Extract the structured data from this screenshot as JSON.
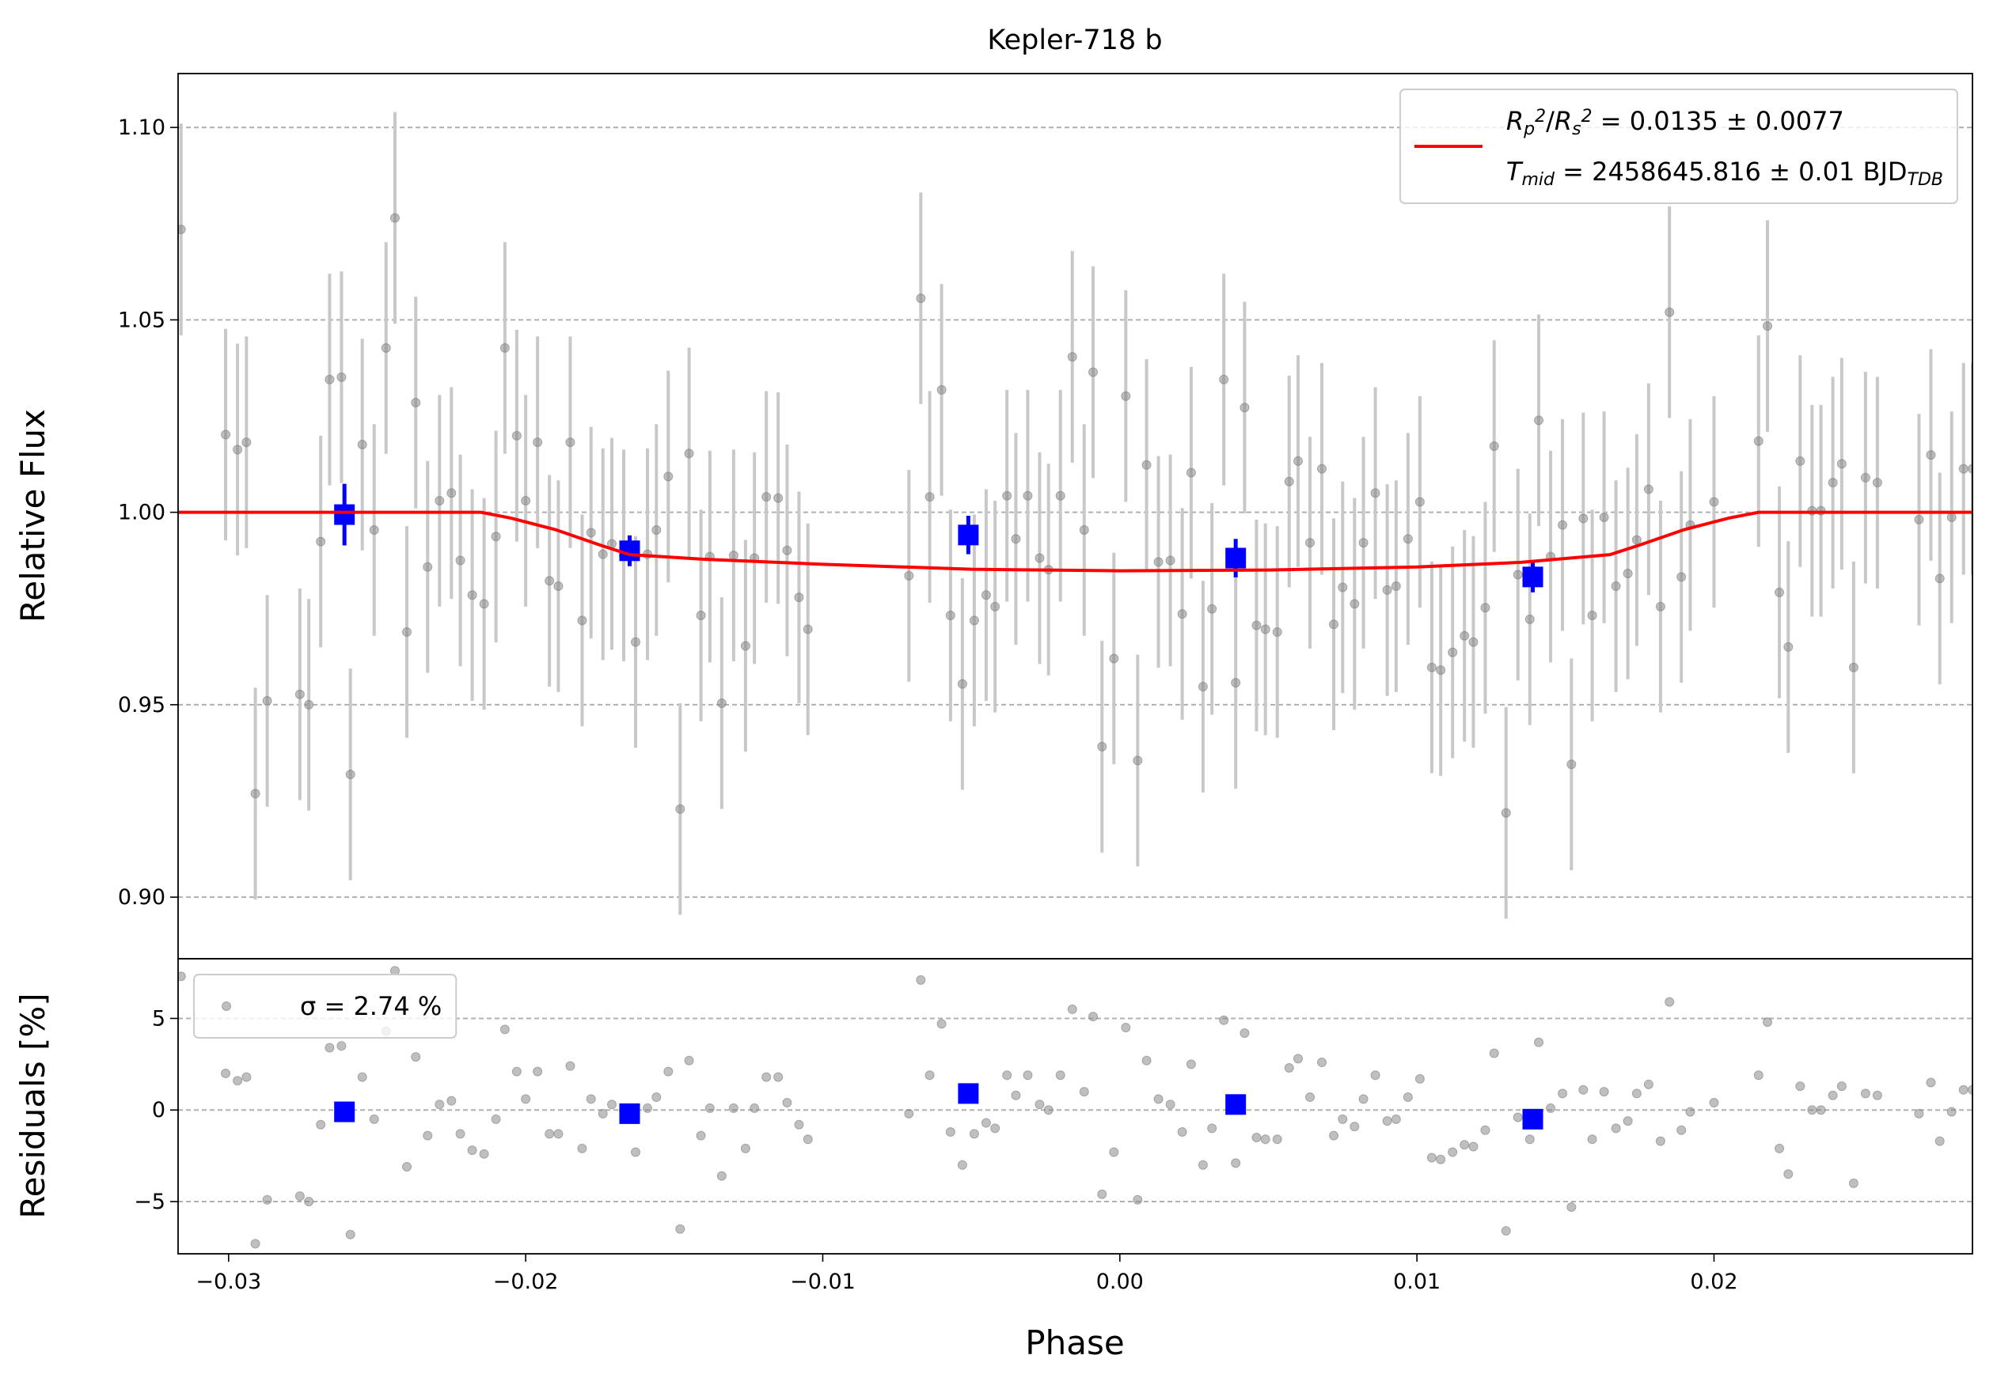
{
  "chart_data": [
    {
      "type": "errorbar",
      "title": "Kepler-718 b",
      "ylabel": "Relative Flux",
      "xlim": [
        -0.0317,
        0.0287
      ],
      "ylim": [
        0.884,
        1.114
      ],
      "yticks": [
        {
          "value": 0.9,
          "label": "0.90"
        },
        {
          "value": 0.95,
          "label": "0.95"
        },
        {
          "value": 1.0,
          "label": "1.00"
        },
        {
          "value": 1.05,
          "label": "1.05"
        },
        {
          "value": 1.1,
          "label": "1.10"
        }
      ],
      "grid": true,
      "legend": "upper right",
      "series": [
        {
          "color": "#808080",
          "marker": "o",
          "yerr": 0.0275,
          "x": [
            -0.0316,
            -0.0301,
            -0.0297,
            -0.0294,
            -0.0291,
            -0.0287,
            -0.0276,
            -0.0273,
            -0.0269,
            -0.0266,
            -0.0262,
            -0.0259,
            -0.0255,
            -0.0251,
            -0.0247,
            -0.0244,
            -0.024,
            -0.0237,
            -0.0233,
            -0.0229,
            -0.0225,
            -0.0222,
            -0.0218,
            -0.0214,
            -0.021,
            -0.0207,
            -0.0203,
            -0.02,
            -0.0196,
            -0.0192,
            -0.0189,
            -0.0185,
            -0.0181,
            -0.0178,
            -0.0174,
            -0.0171,
            -0.0167,
            -0.0163,
            -0.0159,
            -0.0156,
            -0.0152,
            -0.0148,
            -0.0145,
            -0.0141,
            -0.0138,
            -0.0134,
            -0.013,
            -0.0126,
            -0.0123,
            -0.0119,
            -0.0115,
            -0.0112,
            -0.0108,
            -0.0105,
            -0.0071,
            -0.0067,
            -0.0064,
            -0.006,
            -0.0057,
            -0.0053,
            -0.0049,
            -0.0045,
            -0.0042,
            -0.0038,
            -0.0035,
            -0.0031,
            -0.0027,
            -0.0024,
            -0.002,
            -0.0016,
            -0.0012,
            -0.0009,
            -0.0006,
            -0.0002,
            0.0002,
            0.0006,
            0.0009,
            0.0013,
            0.0017,
            0.0021,
            0.0024,
            0.0028,
            0.0031,
            0.0035,
            0.0039,
            0.0042,
            0.0046,
            0.0049,
            0.0053,
            0.0057,
            0.006,
            0.0064,
            0.0068,
            0.0072,
            0.0075,
            0.0079,
            0.0082,
            0.0086,
            0.009,
            0.0093,
            0.0097,
            0.0101,
            0.0105,
            0.0108,
            0.0112,
            0.0116,
            0.0119,
            0.0123,
            0.0126,
            0.013,
            0.0134,
            0.0138,
            0.0141,
            0.0145,
            0.0149,
            0.0152,
            0.0156,
            0.0159,
            0.0163,
            0.0167,
            0.0171,
            0.0174,
            0.0178,
            0.0182,
            0.0185,
            0.0189,
            0.0192,
            0.02,
            0.0215,
            0.0218,
            0.0222,
            0.0225,
            0.0229,
            0.0233,
            0.0236,
            0.024,
            0.0243,
            0.0247,
            0.0251,
            0.0255,
            0.0269,
            0.0273,
            0.0276,
            0.028,
            0.0284,
            0.0287
          ],
          "values": [
            1.0735,
            1.0202,
            1.0163,
            1.0182,
            0.9269,
            0.951,
            0.9527,
            0.95,
            0.9924,
            1.0345,
            1.0351,
            0.9319,
            1.0176,
            0.9954,
            1.0427,
            1.0765,
            0.9689,
            1.0285,
            0.9858,
            1.003,
            1.005,
            0.9875,
            0.9785,
            0.9762,
            0.9937,
            1.0427,
            1.0199,
            1.003,
            1.0182,
            0.9822,
            0.9808,
            1.0182,
            0.9719,
            0.9947,
            0.9891,
            0.9918,
            0.9888,
            0.9663,
            0.9891,
            0.9954,
            1.0093,
            0.9229,
            1.0153,
            0.9732,
            0.9885,
            0.9504,
            0.9888,
            0.9653,
            0.9881,
            1.004,
            1.0037,
            0.9901,
            0.9779,
            0.9696,
            0.9835,
            1.0556,
            1.004,
            1.0318,
            0.9732,
            0.9554,
            0.9719,
            0.9785,
            0.9755,
            1.0043,
            0.9931,
            1.0043,
            0.9881,
            0.9851,
            1.0043,
            1.0404,
            0.9954,
            1.0364,
            0.9391,
            0.962,
            1.0302,
            0.9355,
            1.0123,
            0.9871,
            0.9875,
            0.9736,
            1.0103,
            0.9547,
            0.9749,
            1.0345,
            0.9557,
            1.0272,
            0.9706,
            0.9696,
            0.9689,
            1.008,
            1.0133,
            0.9921,
            1.0113,
            0.9709,
            0.9805,
            0.9762,
            0.9921,
            1.005,
            0.9798,
            0.9808,
            0.9931,
            1.0027,
            0.9597,
            0.959,
            0.9636,
            0.9679,
            0.9663,
            0.9752,
            1.0172,
            0.9219,
            0.9838,
            0.9722,
            1.0239,
            0.9885,
            0.9967,
            0.9345,
            0.9984,
            0.9732,
            0.9987,
            0.9808,
            0.9841,
            0.9928,
            1.006,
            0.9755,
            1.052,
            0.9832,
            0.9967,
            1.0027,
            1.0185,
            1.0484,
            0.9792,
            0.965,
            1.0133,
            1.0004,
            1.0004,
            1.0077,
            1.0126,
            0.9597,
            1.009,
            1.0077,
            0.9981,
            1.0149,
            0.9828,
            0.9987,
            1.0113,
            1.0113
          ]
        },
        {
          "color": "#0000ff",
          "marker": "s",
          "x": [
            -0.0261,
            -0.0165,
            -0.0051,
            0.0039,
            0.0139
          ],
          "values": [
            0.9994,
            0.99,
            0.9941,
            0.9881,
            0.9832
          ],
          "yerr": [
            0.008,
            0.004,
            0.005,
            0.005,
            0.004
          ]
        },
        {
          "color": "#ff0000",
          "marker": "line",
          "name": [
            [
              {
                "text": "R",
                "script": "italic"
              },
              {
                "text": "p",
                "script": "sub"
              },
              {
                "text": "2",
                "script": "sup"
              },
              {
                "text": "/",
                "script": "normal"
              },
              {
                "text": "R",
                "script": "italic"
              },
              {
                "text": "s",
                "script": "sub"
              },
              {
                "text": "2",
                "script": "sup"
              },
              {
                "text": " = 0.0135 ± 0.0077",
                "script": "normal"
              }
            ],
            [
              {
                "text": "T",
                "script": "italic"
              },
              {
                "text": "mid",
                "script": "sub"
              },
              {
                "text": " = 2458645.816 ± 0.01 BJD",
                "script": "normal"
              },
              {
                "text": "TDB",
                "script": "sub"
              }
            ]
          ],
          "x": [
            -0.0317,
            -0.0215,
            -0.0205,
            -0.019,
            -0.0175,
            -0.0165,
            -0.014,
            -0.01,
            -0.005,
            0,
            0.005,
            0.01,
            0.0135,
            0.0165,
            0.0175,
            0.019,
            0.0205,
            0.0215,
            0.0287
          ],
          "values": [
            1,
            1,
            0.9985,
            0.9955,
            0.9915,
            0.989,
            0.9878,
            0.9865,
            0.9852,
            0.9848,
            0.985,
            0.9858,
            0.987,
            0.989,
            0.9915,
            0.9955,
            0.9985,
            1,
            1
          ]
        }
      ]
    },
    {
      "type": "scatter",
      "ylabel": "Residuals [%]",
      "xlabel": "Phase",
      "xlim": [
        -0.0317,
        0.0287
      ],
      "ylim": [
        -7.85,
        8.26
      ],
      "xticks": [
        {
          "value": -0.03,
          "label": "−0.03"
        },
        {
          "value": -0.02,
          "label": "−0.02"
        },
        {
          "value": -0.01,
          "label": "−0.01"
        },
        {
          "value": 0,
          "label": "0.00"
        },
        {
          "value": 0.01,
          "label": "0.01"
        },
        {
          "value": 0.02,
          "label": "0.02"
        }
      ],
      "yticks": [
        {
          "value": -5,
          "label": "−5"
        },
        0,
        5
      ],
      "grid": true,
      "legend": "upper left",
      "series": [
        {
          "name": "σ = 2.74 %",
          "color": "#808080",
          "marker": "o",
          "values": [
            7.3,
            2.0,
            1.6,
            1.8,
            -7.3,
            -4.9,
            -4.7,
            -5.0,
            -0.8,
            3.4,
            3.5,
            -6.8,
            1.8,
            -0.5,
            4.3,
            7.6,
            -3.1,
            2.9,
            -1.4,
            0.3,
            0.5,
            -1.3,
            -2.2,
            -2.4,
            -0.5,
            4.4,
            2.1,
            0.6,
            2.1,
            -1.3,
            -1.3,
            2.4,
            -2.1,
            0.6,
            -0.2,
            0.3,
            0.0,
            -2.3,
            0.1,
            0.7,
            2.1,
            -6.5,
            2.7,
            -1.4,
            0.1,
            -3.6,
            0.1,
            -2.1,
            0.1,
            1.8,
            1.8,
            0.4,
            -0.8,
            -1.6,
            -0.2,
            7.1,
            1.9,
            4.7,
            -1.2,
            -3.0,
            -1.3,
            -0.7,
            -1.0,
            1.9,
            0.8,
            1.9,
            0.3,
            0.0,
            1.9,
            5.5,
            1.0,
            5.1,
            -4.6,
            -2.3,
            4.5,
            -4.9,
            2.7,
            0.6,
            0.3,
            -1.2,
            2.5,
            -3.0,
            -1.0,
            4.9,
            -2.9,
            4.2,
            -1.5,
            -1.6,
            -1.6,
            2.3,
            2.8,
            0.7,
            2.6,
            -1.4,
            -0.5,
            -0.9,
            0.6,
            1.9,
            -0.6,
            -0.5,
            0.7,
            1.7,
            -2.6,
            -2.7,
            -2.3,
            -1.9,
            -2.0,
            -1.1,
            3.1,
            -6.6,
            -0.4,
            -1.6,
            3.7,
            0.1,
            0.9,
            -5.3,
            1.1,
            -1.6,
            1.0,
            -1.0,
            -0.6,
            0.9,
            1.4,
            -1.7,
            5.9,
            -1.1,
            -0.1,
            0.4,
            1.9,
            4.8,
            -2.1,
            -3.5,
            1.3,
            0.0,
            0.0,
            0.8,
            1.3,
            -4.0,
            0.9,
            0.8,
            -0.2,
            1.5,
            -1.7,
            -0.1,
            1.1,
            1.1
          ]
        },
        {
          "color": "#0000ff",
          "marker": "s",
          "values": [
            -0.1,
            -0.2,
            0.9,
            0.3,
            -0.5
          ]
        }
      ]
    }
  ]
}
